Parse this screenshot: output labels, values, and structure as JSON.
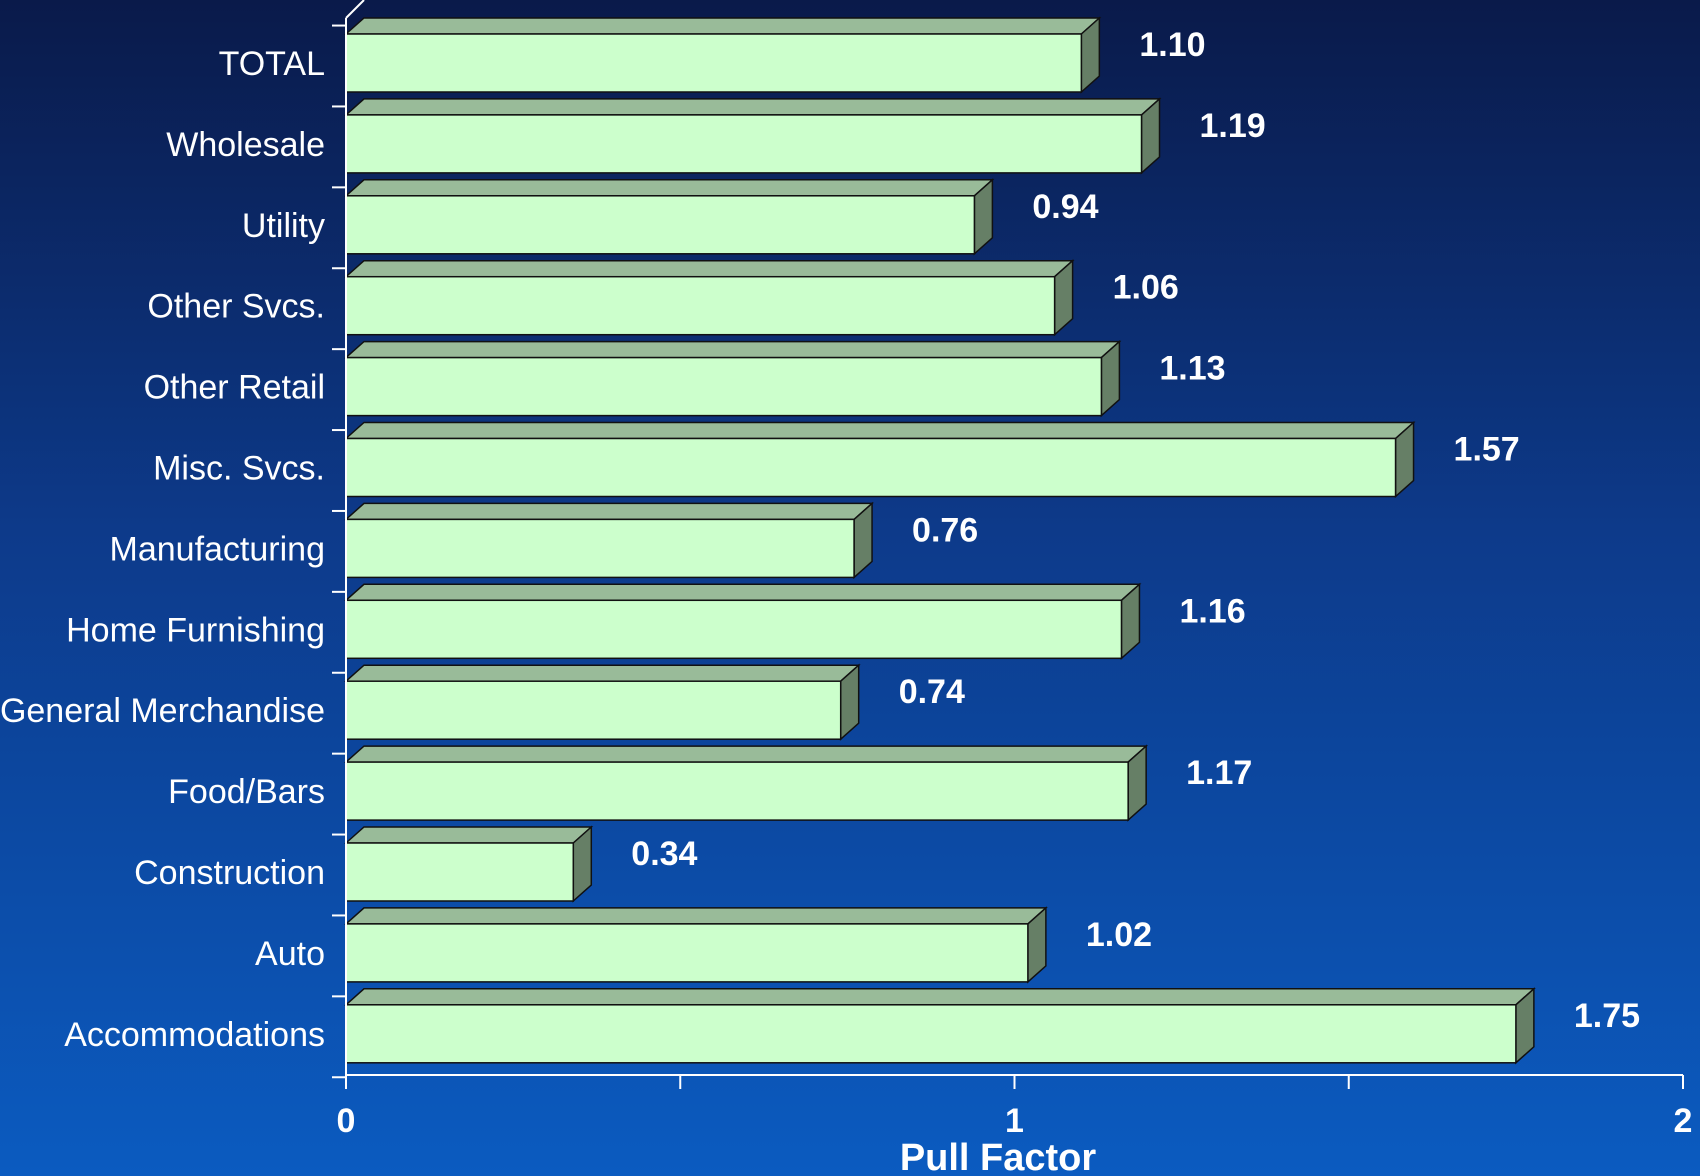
{
  "chart_data": {
    "type": "bar",
    "orientation": "horizontal",
    "title": "",
    "xlabel": "Pull Factor",
    "ylabel": "",
    "xlim": [
      0,
      2
    ],
    "xticks": [
      "0",
      "1",
      "2"
    ],
    "categories": [
      "TOTAL",
      "Wholesale",
      "Utility",
      "Other Svcs.",
      "Other Retail",
      "Misc. Svcs.",
      "Manufacturing",
      "Home Furnishing",
      "General Merchandise",
      "Food/Bars",
      "Construction",
      "Auto",
      "Accommodations"
    ],
    "values": [
      1.1,
      1.19,
      0.94,
      1.06,
      1.13,
      1.57,
      0.76,
      1.16,
      0.74,
      1.17,
      0.34,
      1.02,
      1.75
    ],
    "value_labels": [
      "1.10",
      "1.19",
      "0.94",
      "1.06",
      "1.13",
      "1.57",
      "0.76",
      "1.16",
      "0.74",
      "1.17",
      "0.34",
      "1.02",
      "1.75"
    ],
    "grid": false,
    "colors": {
      "bar_front": "#ccffcc",
      "bar_top": "#99bb99",
      "bar_side": "#667f66",
      "title": "#ffff33",
      "text": "#ffffff"
    }
  }
}
